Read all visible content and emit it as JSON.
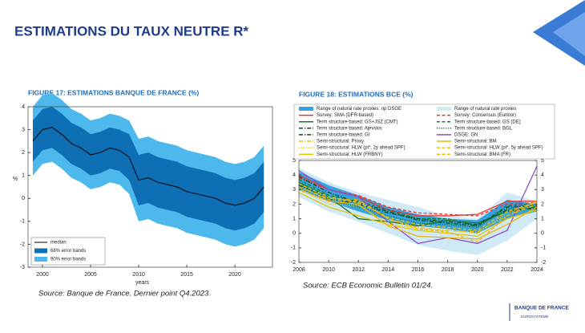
{
  "title": "ESTIMATIONS DU TAUX NEUTRE R*",
  "sources": [
    "Source: Banque de France. Dernier point Q4.2023.",
    "Source: ECB Economic Bulletin 01/24."
  ],
  "logo": {
    "name": "BANQUE DE FRANCE",
    "sub": "EUROSYSTÈME"
  },
  "chart_data": [
    {
      "type": "line",
      "title": "FIGURE 17: ESTIMATIONS BANQUE DE FRANCE (%)",
      "xlabel": "years",
      "ylabel": "%",
      "x": [
        1999,
        2000,
        2001,
        2002,
        2003,
        2004,
        2005,
        2006,
        2007,
        2008,
        2009,
        2010,
        2011,
        2012,
        2013,
        2014,
        2015,
        2016,
        2017,
        2018,
        2019,
        2020,
        2021,
        2022,
        2023
      ],
      "xlim": [
        1998.5,
        2023.9
      ],
      "xticks": [
        2000,
        2005,
        2010,
        2015,
        2020
      ],
      "ylim": [
        -3,
        4
      ],
      "yticks": [
        -3,
        -2,
        -1,
        0,
        1,
        2,
        3,
        4
      ],
      "grid": false,
      "series": [
        {
          "name": "median",
          "color": "#000000",
          "values": [
            2.5,
            3.0,
            3.1,
            2.8,
            2.4,
            2.2,
            1.9,
            2.0,
            2.2,
            2.1,
            1.8,
            0.8,
            0.9,
            0.7,
            0.6,
            0.5,
            0.3,
            0.2,
            0.1,
            0.0,
            -0.2,
            -0.3,
            -0.2,
            0.0,
            0.5
          ]
        },
        {
          "name": "68% error bands",
          "color": "#0f6fb5",
          "lower": [
            1.6,
            2.1,
            2.2,
            1.9,
            1.5,
            1.3,
            1.0,
            1.1,
            1.3,
            1.2,
            0.8,
            -0.3,
            -0.2,
            -0.4,
            -0.5,
            -0.6,
            -0.8,
            -0.9,
            -1.0,
            -1.1,
            -1.3,
            -1.4,
            -1.3,
            -1.1,
            -0.6
          ],
          "upper": [
            3.4,
            3.9,
            4.0,
            3.7,
            3.3,
            3.1,
            2.8,
            2.9,
            3.1,
            3.0,
            2.8,
            1.9,
            2.0,
            1.8,
            1.7,
            1.6,
            1.4,
            1.3,
            1.2,
            1.1,
            0.9,
            0.8,
            0.9,
            1.1,
            1.6
          ]
        },
        {
          "name": "90% error bands",
          "color": "#4db8ec",
          "lower": [
            1.0,
            1.5,
            1.6,
            1.3,
            0.9,
            0.7,
            0.4,
            0.5,
            0.7,
            0.6,
            0.2,
            -1.0,
            -0.9,
            -1.1,
            -1.2,
            -1.3,
            -1.5,
            -1.6,
            -1.7,
            -1.8,
            -2.0,
            -2.1,
            -2.0,
            -1.8,
            -1.3
          ],
          "upper": [
            4.0,
            4.5,
            4.6,
            4.3,
            3.9,
            3.7,
            3.4,
            3.5,
            3.7,
            3.6,
            3.4,
            2.6,
            2.7,
            2.5,
            2.4,
            2.3,
            2.1,
            2.0,
            1.9,
            1.8,
            1.6,
            1.5,
            1.6,
            1.8,
            2.3
          ]
        }
      ]
    },
    {
      "type": "line",
      "title": "FIGURE 18: ESTIMATIONS BCE (%)",
      "x": [
        2008,
        2010,
        2012,
        2014,
        2016,
        2018,
        2020,
        2022,
        2024
      ],
      "xlim": [
        2008,
        2024
      ],
      "xticks": [
        2008,
        2010,
        2012,
        2014,
        2016,
        2018,
        2020,
        2022,
        2024
      ],
      "ylim": [
        -2,
        5
      ],
      "yticks": [
        -2,
        -1,
        0,
        1,
        2,
        3,
        4,
        5
      ],
      "y2lim": [
        -2,
        5
      ],
      "y2ticks": [
        -2,
        -1,
        0,
        1,
        2,
        3,
        4,
        5
      ],
      "grid": false,
      "series": [
        {
          "name": "Range of natural rate proxies: np DSGE",
          "color": "#35a3e0",
          "lower": [
            3.0,
            2.2,
            1.5,
            0.9,
            0.5,
            0.3,
            0.0,
            1.0,
            1.5
          ],
          "upper": [
            4.2,
            3.3,
            2.6,
            1.8,
            1.3,
            1.0,
            0.9,
            2.3,
            2.0
          ]
        },
        {
          "name": "Range of natural rate proxies",
          "color": "#cfe9f7",
          "lower": [
            2.5,
            1.5,
            0.8,
            0.0,
            -0.8,
            -1.2,
            -1.5,
            -0.5,
            1.0
          ],
          "upper": [
            4.5,
            3.5,
            2.8,
            2.3,
            1.8,
            1.2,
            1.0,
            2.8,
            2.2
          ]
        },
        {
          "name": "Survey: SMA (DFR-based)",
          "color": "#e8372e",
          "linestyle": "solid",
          "values": [
            4.0,
            3.0,
            2.5,
            1.6,
            1.2,
            1.2,
            1.3,
            2.2,
            2.2
          ]
        },
        {
          "name": "Survey: Consensus (Euribor)",
          "color": "#e8372e",
          "linestyle": "dashed",
          "values": [
            3.8,
            3.0,
            2.6,
            1.8,
            1.4,
            1.3,
            1.2,
            2.0,
            2.1
          ]
        },
        {
          "name": "Term structure-based: GS+JSZ (CMT)",
          "color": "#1a7a2a",
          "linestyle": "solid",
          "values": [
            3.5,
            2.5,
            1.0,
            0.8,
            0.5,
            0.9,
            0.7,
            1.5,
            1.8
          ]
        },
        {
          "name": "Term structure-based: GS (DE)",
          "color": "#1a7a2a",
          "linestyle": "dashed",
          "values": [
            3.7,
            2.6,
            2.2,
            1.6,
            1.0,
            1.0,
            0.5,
            1.9,
            2.0
          ]
        },
        {
          "name": "Term structure-based: Ajevskis",
          "color": "#0d4d1a",
          "linestyle": "dashdot",
          "values": [
            3.3,
            2.4,
            2.0,
            1.4,
            1.0,
            0.8,
            0.6,
            1.6,
            1.7
          ]
        },
        {
          "name": "Term structure-based: BGL",
          "color": "#1a7a2a",
          "linestyle": "dotted",
          "values": [
            3.4,
            2.3,
            1.8,
            1.2,
            0.7,
            0.6,
            0.4,
            1.7,
            1.9
          ]
        },
        {
          "name": "Term structure-based: GI",
          "color": "#0d4d1a",
          "linestyle": "dashdot",
          "values": [
            3.9,
            2.8,
            2.1,
            1.5,
            0.9,
            0.7,
            0.5,
            1.8,
            1.9
          ]
        },
        {
          "name": "DSGE: GN",
          "color": "#8b4fc8",
          "linestyle": "solid",
          "values": [
            4.3,
            3.0,
            2.5,
            0.8,
            -0.7,
            -0.3,
            -0.7,
            0.2,
            4.6
          ]
        },
        {
          "name": "Semi-structural: Proxy",
          "color": "#f0c000",
          "linestyle": "dashdot",
          "values": [
            3.2,
            2.4,
            2.3,
            1.0,
            0.4,
            0.2,
            0.1,
            1.2,
            2.0
          ]
        },
        {
          "name": "Semi-structural: BM",
          "color": "#f5b400",
          "linestyle": "solid",
          "values": [
            3.0,
            2.2,
            2.0,
            0.5,
            -0.2,
            -0.3,
            -0.4,
            0.6,
            1.8
          ]
        },
        {
          "name": "Semi-structural: HLW (pi*, 2y ahead SPF)",
          "color": "#f0c000",
          "linestyle": "dotted",
          "values": [
            3.1,
            2.0,
            1.9,
            0.7,
            0.3,
            0.2,
            0.0,
            1.4,
            2.2
          ]
        },
        {
          "name": "Semi-structural: HLW (pi*, 5y ahead SPF)",
          "color": "#f0c000",
          "linestyle": "dashed",
          "values": [
            3.4,
            2.5,
            2.1,
            1.1,
            0.6,
            0.4,
            0.2,
            1.5,
            2.1
          ]
        },
        {
          "name": "Semi-structural: HLW (FRBNY)",
          "color": "#e6c400",
          "linestyle": "solid",
          "values": [
            2.8,
            1.8,
            1.2,
            0.6,
            0.2,
            0.0,
            -0.2,
            1.0,
            1.6
          ]
        },
        {
          "name": "Semi-structural: BMA (FR)",
          "color": "#f5b400",
          "linestyle": "dashed",
          "values": [
            3.2,
            2.3,
            2.2,
            1.0,
            0.3,
            0.1,
            -0.6,
            1.2,
            2.2
          ]
        }
      ]
    }
  ]
}
